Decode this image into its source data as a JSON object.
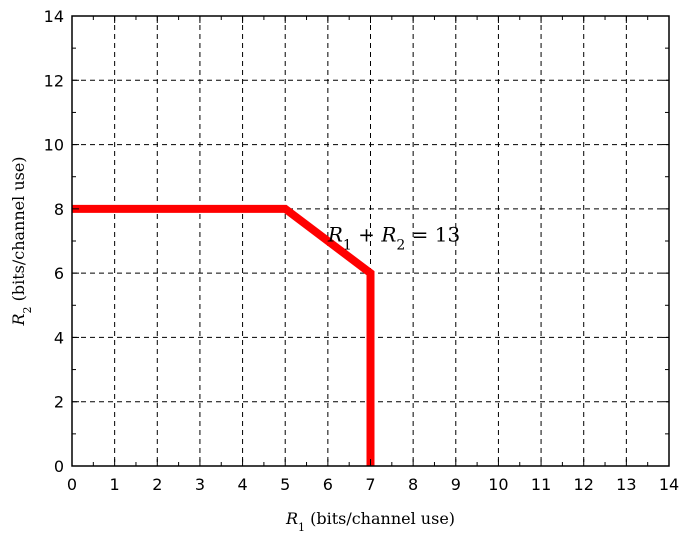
{
  "chart_data": {
    "type": "line",
    "title": "",
    "xlabel": "R1 (bits/channel use)",
    "ylabel": "R2 (bits/channel use)",
    "xlim": [
      0,
      14
    ],
    "ylim": [
      0,
      14
    ],
    "xticks": [
      "0",
      "1",
      "2",
      "3",
      "4",
      "5",
      "6",
      "7",
      "8",
      "9",
      "10",
      "11",
      "12",
      "13",
      "14"
    ],
    "yticks": [
      "0",
      "2",
      "4",
      "6",
      "8",
      "10",
      "12",
      "14"
    ],
    "grid": true,
    "grid_style": "dashed",
    "series": [
      {
        "color": "#ff0000",
        "x": [
          0,
          5,
          7,
          7
        ],
        "y": [
          8,
          8,
          6,
          0
        ]
      }
    ],
    "annotations": [
      {
        "text": "R1 + R2 = 13",
        "x": 6.0,
        "y": 7.2
      }
    ]
  }
}
